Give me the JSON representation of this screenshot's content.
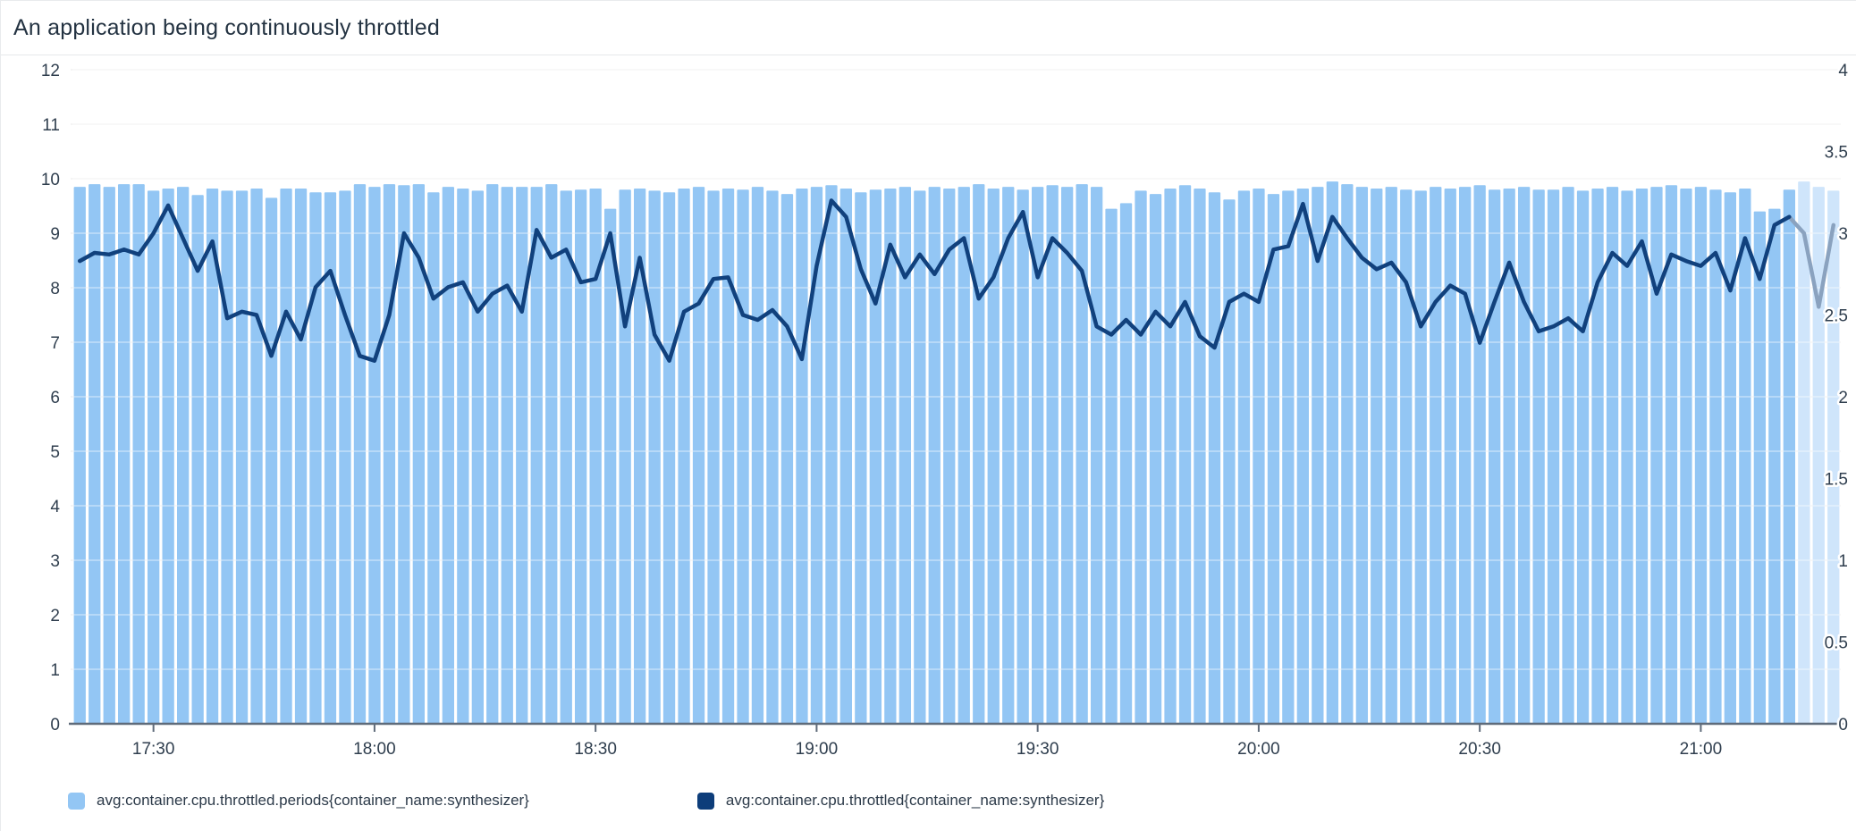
{
  "header": {
    "title": "An application being continuously throttled"
  },
  "chart_data": {
    "type": "bar",
    "subtype": "dual-axis bar + line timeseries",
    "title": "An application being continuously throttled",
    "x_start_time": "17:20",
    "x_step_minutes": 2,
    "x_tick_labels": [
      "17:30",
      "18:00",
      "18:30",
      "19:00",
      "19:30",
      "20:00",
      "20:30",
      "21:00"
    ],
    "left_axis": {
      "range": [
        0,
        12
      ],
      "ticks": [
        "0",
        "1",
        "2",
        "3",
        "4",
        "5",
        "6",
        "7",
        "8",
        "9",
        "10",
        "11",
        "12"
      ],
      "grid": true
    },
    "right_axis": {
      "range": [
        0,
        4
      ],
      "ticks": [
        "0",
        "0.5",
        "1",
        "1.5",
        "2",
        "2.5",
        "3",
        "3.5",
        "4"
      ],
      "grid": false
    },
    "legend_position": "bottom-left",
    "estimated_from_index": 117,
    "series": [
      {
        "name": "avg:container.cpu.throttled.periods{container_name:synthesizer}",
        "type": "bar",
        "axis": "left",
        "color": "#93c6f4",
        "estimated_color": "#cfe5fb",
        "values": [
          9.85,
          9.9,
          9.85,
          9.9,
          9.9,
          9.78,
          9.82,
          9.85,
          9.7,
          9.82,
          9.78,
          9.78,
          9.82,
          9.65,
          9.82,
          9.82,
          9.75,
          9.75,
          9.78,
          9.9,
          9.85,
          9.9,
          9.88,
          9.9,
          9.75,
          9.85,
          9.82,
          9.78,
          9.9,
          9.85,
          9.85,
          9.85,
          9.9,
          9.78,
          9.8,
          9.82,
          9.45,
          9.8,
          9.82,
          9.78,
          9.75,
          9.82,
          9.85,
          9.78,
          9.82,
          9.8,
          9.85,
          9.78,
          9.72,
          9.82,
          9.85,
          9.88,
          9.82,
          9.75,
          9.8,
          9.82,
          9.85,
          9.78,
          9.85,
          9.82,
          9.85,
          9.9,
          9.82,
          9.85,
          9.8,
          9.85,
          9.88,
          9.85,
          9.9,
          9.85,
          9.45,
          9.55,
          9.78,
          9.72,
          9.82,
          9.88,
          9.82,
          9.75,
          9.62,
          9.78,
          9.82,
          9.72,
          9.78,
          9.82,
          9.85,
          9.95,
          9.9,
          9.85,
          9.82,
          9.85,
          9.8,
          9.78,
          9.85,
          9.82,
          9.85,
          9.88,
          9.8,
          9.82,
          9.85,
          9.8,
          9.8,
          9.85,
          9.78,
          9.82,
          9.85,
          9.78,
          9.82,
          9.85,
          9.88,
          9.82,
          9.85,
          9.8,
          9.75,
          9.82,
          9.4,
          9.45,
          9.8,
          9.95,
          9.85,
          9.78
        ]
      },
      {
        "name": "avg:container.cpu.throttled{container_name:synthesizer}",
        "type": "line",
        "axis": "right",
        "color": "#11417d",
        "estimated_color": "#8aa2bf",
        "values": [
          2.83,
          2.88,
          2.87,
          2.9,
          2.87,
          3.0,
          3.17,
          2.97,
          2.77,
          2.95,
          2.48,
          2.52,
          2.5,
          2.25,
          2.52,
          2.35,
          2.67,
          2.77,
          2.5,
          2.25,
          2.22,
          2.5,
          3.0,
          2.85,
          2.6,
          2.67,
          2.7,
          2.52,
          2.63,
          2.68,
          2.52,
          3.02,
          2.85,
          2.9,
          2.7,
          2.72,
          3.0,
          2.43,
          2.85,
          2.38,
          2.22,
          2.52,
          2.57,
          2.72,
          2.73,
          2.5,
          2.47,
          2.53,
          2.43,
          2.23,
          2.8,
          3.2,
          3.1,
          2.78,
          2.57,
          2.93,
          2.73,
          2.87,
          2.75,
          2.9,
          2.97,
          2.6,
          2.73,
          2.97,
          3.13,
          2.73,
          2.97,
          2.88,
          2.77,
          2.43,
          2.38,
          2.47,
          2.38,
          2.52,
          2.43,
          2.58,
          2.37,
          2.3,
          2.58,
          2.63,
          2.58,
          2.9,
          2.92,
          3.18,
          2.83,
          3.1,
          2.97,
          2.85,
          2.78,
          2.82,
          2.7,
          2.43,
          2.58,
          2.68,
          2.63,
          2.33,
          2.58,
          2.82,
          2.58,
          2.4,
          2.43,
          2.48,
          2.4,
          2.7,
          2.88,
          2.8,
          2.95,
          2.63,
          2.87,
          2.83,
          2.8,
          2.88,
          2.65,
          2.97,
          2.72,
          3.05,
          3.1,
          3.0,
          2.55,
          3.05
        ]
      }
    ]
  },
  "legend": {
    "items": [
      {
        "label": "avg:container.cpu.throttled.periods{container_name:synthesizer}",
        "color": "#93c6f4"
      },
      {
        "label": "avg:container.cpu.throttled{container_name:synthesizer}",
        "color": "#0d3d7a"
      }
    ]
  },
  "colors": {
    "bar": "#93c6f4",
    "bar_estimated": "#cfe5fb",
    "line": "#11417d",
    "line_estimated": "#8aa2bf",
    "grid": "#e8e8e8",
    "grid_over_bars": "rgba(255,255,255,0.45)",
    "axis_text": "#2f3e4e",
    "baseline": "#5f6b7a",
    "tick": "#5f6b7a",
    "title_text": "#243342",
    "legend_text": "#2c3a49",
    "header_border": "#e6e8ea"
  }
}
